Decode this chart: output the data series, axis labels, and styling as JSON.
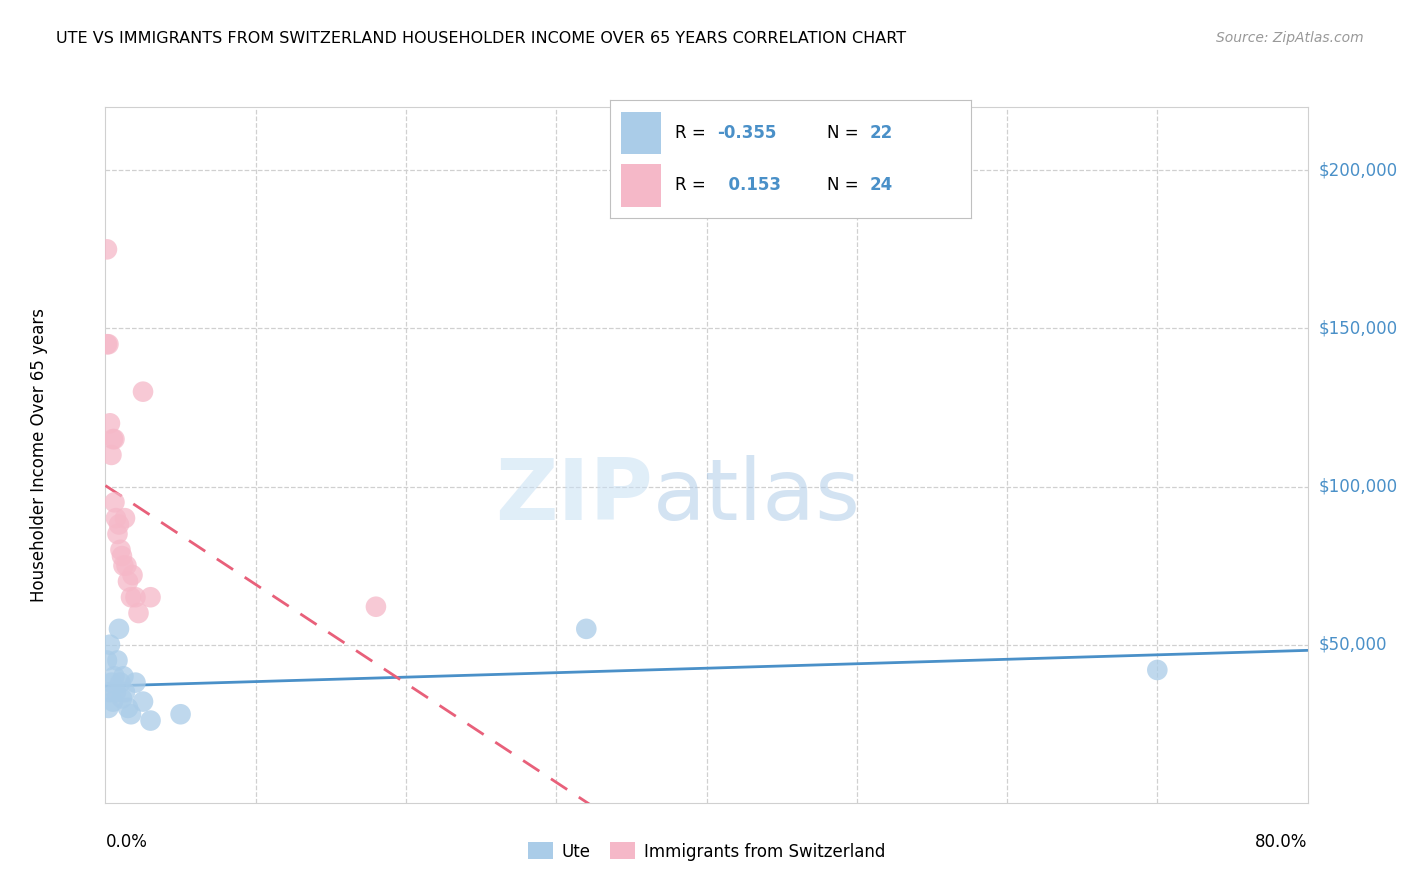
{
  "title": "UTE VS IMMIGRANTS FROM SWITZERLAND HOUSEHOLDER INCOME OVER 65 YEARS CORRELATION CHART",
  "source": "Source: ZipAtlas.com",
  "ylabel": "Householder Income Over 65 years",
  "xlim": [
    0.0,
    0.8
  ],
  "ylim": [
    0,
    220000
  ],
  "yticks": [
    0,
    50000,
    100000,
    150000,
    200000
  ],
  "ytick_labels_right": [
    "",
    "$50,000",
    "$100,000",
    "$150,000",
    "$200,000"
  ],
  "ute_color": "#aacce8",
  "swiss_color": "#f5b8c8",
  "ute_line_color": "#4a90c8",
  "swiss_line_color": "#e8607a",
  "label_blue": "#4a90c8",
  "ute_scatter_x": [
    0.001,
    0.002,
    0.003,
    0.003,
    0.004,
    0.005,
    0.006,
    0.007,
    0.008,
    0.009,
    0.01,
    0.011,
    0.012,
    0.013,
    0.015,
    0.017,
    0.02,
    0.025,
    0.03,
    0.05,
    0.32,
    0.7
  ],
  "ute_scatter_y": [
    45000,
    30000,
    35000,
    50000,
    38000,
    32000,
    40000,
    35000,
    45000,
    55000,
    38000,
    33000,
    40000,
    35000,
    30000,
    28000,
    38000,
    32000,
    26000,
    28000,
    55000,
    42000
  ],
  "swiss_scatter_x": [
    0.001,
    0.001,
    0.002,
    0.003,
    0.004,
    0.005,
    0.006,
    0.006,
    0.007,
    0.008,
    0.009,
    0.01,
    0.011,
    0.012,
    0.013,
    0.014,
    0.015,
    0.017,
    0.018,
    0.02,
    0.022,
    0.025,
    0.03,
    0.18
  ],
  "swiss_scatter_y": [
    175000,
    145000,
    145000,
    120000,
    110000,
    115000,
    95000,
    115000,
    90000,
    85000,
    88000,
    80000,
    78000,
    75000,
    90000,
    75000,
    70000,
    65000,
    72000,
    65000,
    60000,
    130000,
    65000,
    62000
  ]
}
